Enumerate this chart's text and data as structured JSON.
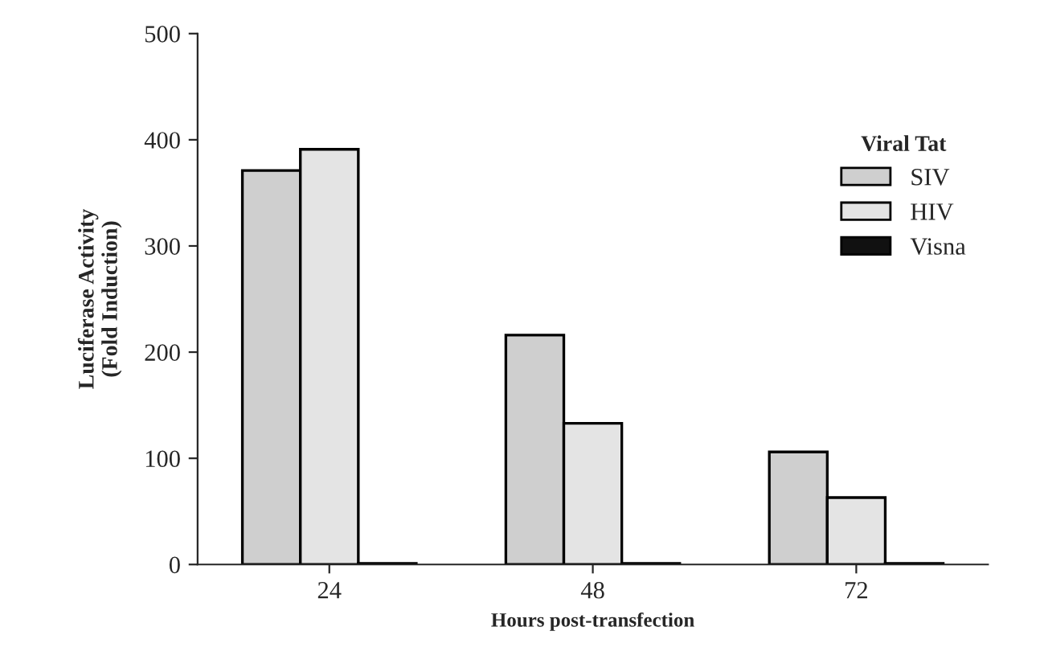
{
  "chart_data": {
    "type": "bar",
    "xlabel": "Hours post-transfection",
    "ylabel": "Luciferase Activity\n(Fold Induction)",
    "legend_title": "Viral Tat",
    "categories": [
      "24",
      "48",
      "72"
    ],
    "series": [
      {
        "name": "SIV",
        "color": "#cfcfcf",
        "values": [
          371,
          216,
          106
        ]
      },
      {
        "name": "HIV",
        "color": "#e4e4e4",
        "values": [
          391,
          133,
          63
        ]
      },
      {
        "name": "Visna",
        "color": "#111111",
        "values": [
          1,
          1,
          1
        ]
      }
    ],
    "ylim": [
      0,
      500
    ],
    "yticks": [
      0,
      100,
      200,
      300,
      400,
      500
    ],
    "grid": false,
    "legend": "top right"
  }
}
